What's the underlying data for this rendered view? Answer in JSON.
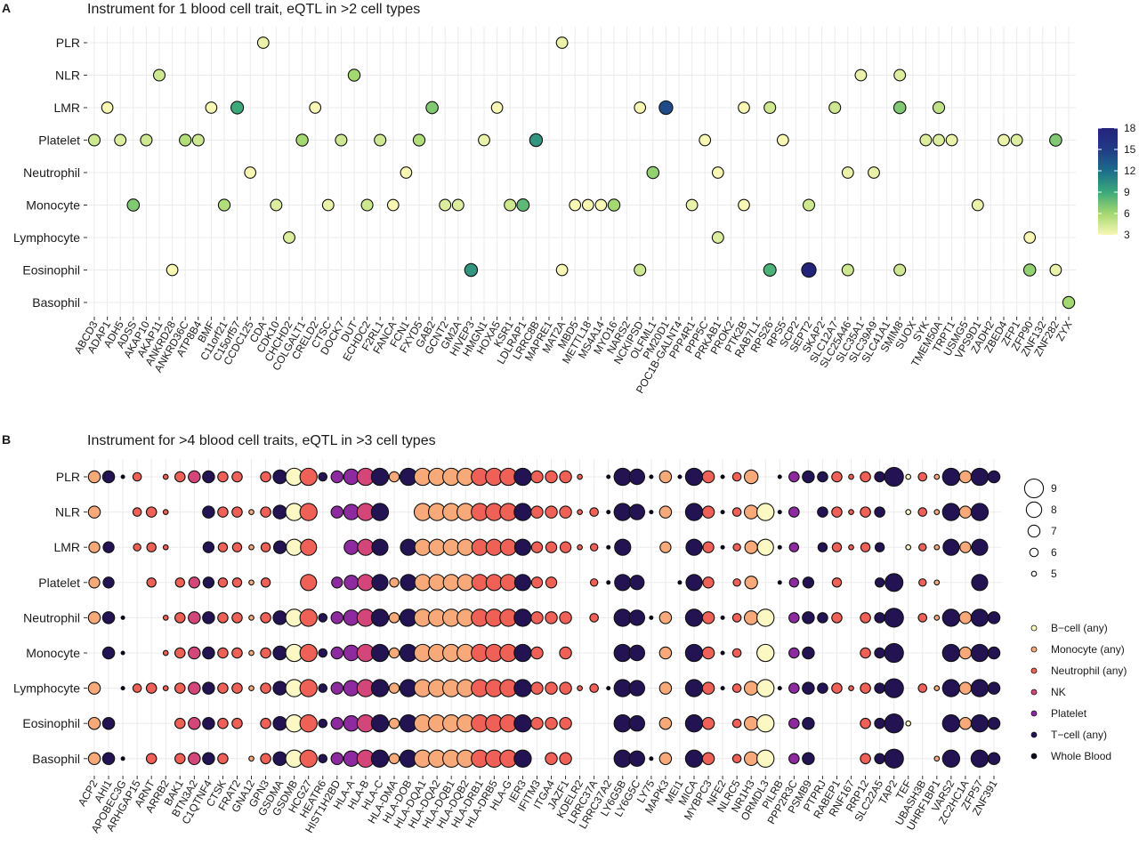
{
  "chart_data": [
    {
      "panel_label": "A",
      "type": "scatter",
      "title": "Instrument for 1 blood cell trait, eQTL in >2 cell types",
      "rows": [
        "PLR",
        "NLR",
        "LMR",
        "Platelet",
        "Neutrophil",
        "Monocyte",
        "Lymphocyte",
        "Eosinophil",
        "Basophil"
      ],
      "columns": [
        "ABCD3",
        "ADAP1",
        "ADH5",
        "ADSS",
        "AKAP10",
        "AKAP11",
        "ANKRD28",
        "ANKRD36C",
        "ATP8B4",
        "BMF",
        "C11orf21",
        "C15orf57",
        "CCDC125",
        "CDA",
        "CDK10",
        "CHCHD2",
        "COLGALT1",
        "CRELD2",
        "CTSC",
        "DOCK7",
        "DUT",
        "ECHDC2",
        "F2RL1",
        "FANCA",
        "FCN1",
        "FXYD5",
        "GAB2",
        "GCNT2",
        "GM2A",
        "HIVEP3",
        "HMGN1",
        "HOXA5",
        "KSR1",
        "LDLRAP1",
        "LRRC8B",
        "MAPRE1",
        "MAT2A",
        "MBD5",
        "METTL18",
        "MS4A14",
        "MYO16",
        "NARS2",
        "NCKIPSD",
        "OLFML1",
        "PM20D1",
        "POC1B-GALNT4",
        "PPP4R1",
        "PPP5C",
        "PRKAB1",
        "PROK2",
        "PTK2B",
        "RAB7L1",
        "RPS26",
        "RPS5",
        "SCP2",
        "SEPT2",
        "SKAP2",
        "SLC12A7",
        "SLC25A46",
        "SLC35A1",
        "SLC39A9",
        "SLC41A1",
        "SMIM8",
        "SUOX",
        "SYK",
        "TMEM50A",
        "TRPT1",
        "USMG5",
        "VPS9D1",
        "ZADH2",
        "ZBED4",
        "ZFP1",
        "ZFP90",
        "ZNF132",
        "ZNF282",
        "ZYX"
      ],
      "points": [
        {
          "row": "PLR",
          "col": "CDA",
          "value": 3.5
        },
        {
          "row": "PLR",
          "col": "MAT2A",
          "value": 3.5
        },
        {
          "row": "NLR",
          "col": "AKAP11",
          "value": 4.5
        },
        {
          "row": "NLR",
          "col": "DUT",
          "value": 6
        },
        {
          "row": "NLR",
          "col": "SLC35A1",
          "value": 3.5
        },
        {
          "row": "NLR",
          "col": "SMIM8",
          "value": 4
        },
        {
          "row": "LMR",
          "col": "ADAP1",
          "value": 3
        },
        {
          "row": "LMR",
          "col": "BMF",
          "value": 3
        },
        {
          "row": "LMR",
          "col": "C15orf57",
          "value": 9
        },
        {
          "row": "LMR",
          "col": "CRELD2",
          "value": 3
        },
        {
          "row": "LMR",
          "col": "GAB2",
          "value": 7
        },
        {
          "row": "LMR",
          "col": "HOXA5",
          "value": 3
        },
        {
          "row": "LMR",
          "col": "NCKIPSD",
          "value": 3
        },
        {
          "row": "LMR",
          "col": "PM20D1",
          "value": 14
        },
        {
          "row": "LMR",
          "col": "PTK2B",
          "value": 3
        },
        {
          "row": "LMR",
          "col": "RPS26",
          "value": 4.5
        },
        {
          "row": "LMR",
          "col": "SLC12A7",
          "value": 4.5
        },
        {
          "row": "LMR",
          "col": "SMIM8",
          "value": 7
        },
        {
          "row": "LMR",
          "col": "TMEM50A",
          "value": 5
        },
        {
          "row": "Platelet",
          "col": "ABCD3",
          "value": 4.5
        },
        {
          "row": "Platelet",
          "col": "ADH5",
          "value": 4
        },
        {
          "row": "Platelet",
          "col": "AKAP10",
          "value": 4.5
        },
        {
          "row": "Platelet",
          "col": "ANKRD36C",
          "value": 5.5
        },
        {
          "row": "Platelet",
          "col": "ATP8B4",
          "value": 4.5
        },
        {
          "row": "Platelet",
          "col": "COLGALT1",
          "value": 6
        },
        {
          "row": "Platelet",
          "col": "DOCK7",
          "value": 4.5
        },
        {
          "row": "Platelet",
          "col": "F2RL1",
          "value": 4.5
        },
        {
          "row": "Platelet",
          "col": "FXYD5",
          "value": 5.5
        },
        {
          "row": "Platelet",
          "col": "HMGN1",
          "value": 3.5
        },
        {
          "row": "Platelet",
          "col": "LRRC8B",
          "value": 10
        },
        {
          "row": "Platelet",
          "col": "PPP5C",
          "value": 3
        },
        {
          "row": "Platelet",
          "col": "RPS5",
          "value": 3
        },
        {
          "row": "Platelet",
          "col": "SYK",
          "value": 4
        },
        {
          "row": "Platelet",
          "col": "TMEM50A",
          "value": 4
        },
        {
          "row": "Platelet",
          "col": "TRPT1",
          "value": 3.5
        },
        {
          "row": "Platelet",
          "col": "ZBED4",
          "value": 3.5
        },
        {
          "row": "Platelet",
          "col": "ZFP1",
          "value": 4
        },
        {
          "row": "Platelet",
          "col": "ZNF282",
          "value": 7
        },
        {
          "row": "Neutrophil",
          "col": "CCDC125",
          "value": 3
        },
        {
          "row": "Neutrophil",
          "col": "FCN1",
          "value": 3
        },
        {
          "row": "Neutrophil",
          "col": "OLFML1",
          "value": 6.5
        },
        {
          "row": "Neutrophil",
          "col": "PRKAB1",
          "value": 3
        },
        {
          "row": "Neutrophil",
          "col": "SLC25A46",
          "value": 3.5
        },
        {
          "row": "Neutrophil",
          "col": "SLC39A9",
          "value": 3.5
        },
        {
          "row": "Monocyte",
          "col": "ADSS",
          "value": 7
        },
        {
          "row": "Monocyte",
          "col": "C11orf21",
          "value": 5.5
        },
        {
          "row": "Monocyte",
          "col": "CDK10",
          "value": 4
        },
        {
          "row": "Monocyte",
          "col": "CTSC",
          "value": 3.5
        },
        {
          "row": "Monocyte",
          "col": "ECHDC2",
          "value": 4.5
        },
        {
          "row": "Monocyte",
          "col": "FANCA",
          "value": 3
        },
        {
          "row": "Monocyte",
          "col": "GCNT2",
          "value": 4
        },
        {
          "row": "Monocyte",
          "col": "GM2A",
          "value": 4
        },
        {
          "row": "Monocyte",
          "col": "KSR1",
          "value": 4.5
        },
        {
          "row": "Monocyte",
          "col": "LDLRAP1",
          "value": 8
        },
        {
          "row": "Monocyte",
          "col": "MBD5",
          "value": 3
        },
        {
          "row": "Monocyte",
          "col": "METTL18",
          "value": 3
        },
        {
          "row": "Monocyte",
          "col": "MS4A14",
          "value": 3
        },
        {
          "row": "Monocyte",
          "col": "MYO16",
          "value": 6
        },
        {
          "row": "Monocyte",
          "col": "PPP4R1",
          "value": 3.5
        },
        {
          "row": "Monocyte",
          "col": "PTK2B",
          "value": 3
        },
        {
          "row": "Monocyte",
          "col": "SEPT2",
          "value": 4.5
        },
        {
          "row": "Monocyte",
          "col": "VPS9D1",
          "value": 3.5
        },
        {
          "row": "Lymphocyte",
          "col": "CHCHD2",
          "value": 4
        },
        {
          "row": "Lymphocyte",
          "col": "PRKAB1",
          "value": 4
        },
        {
          "row": "Lymphocyte",
          "col": "ZFP90",
          "value": 3
        },
        {
          "row": "Eosinophil",
          "col": "ANKRD28",
          "value": 3
        },
        {
          "row": "Eosinophil",
          "col": "HIVEP3",
          "value": 10
        },
        {
          "row": "Eosinophil",
          "col": "MAT2A",
          "value": 3
        },
        {
          "row": "Eosinophil",
          "col": "NCKIPSD",
          "value": 4.5
        },
        {
          "row": "Eosinophil",
          "col": "RPS26",
          "value": 8.5
        },
        {
          "row": "Eosinophil",
          "col": "SEPT2",
          "value": 18
        },
        {
          "row": "Eosinophil",
          "col": "SLC25A46",
          "value": 4.5
        },
        {
          "row": "Eosinophil",
          "col": "SMIM8",
          "value": 4.5
        },
        {
          "row": "Eosinophil",
          "col": "ZFP90",
          "value": 6.5
        },
        {
          "row": "Eosinophil",
          "col": "ZNF282",
          "value": 3.5
        },
        {
          "row": "Basophil",
          "col": "ZYX",
          "value": 6
        }
      ],
      "colorbar": {
        "ticks": [
          3,
          6,
          9,
          12,
          15,
          18
        ],
        "range": [
          3,
          18
        ]
      }
    },
    {
      "panel_label": "B",
      "type": "scatter",
      "title": "Instrument for >4 blood cell traits, eQTL in >3 cell types",
      "rows": [
        "PLR",
        "NLR",
        "LMR",
        "Platelet",
        "Neutrophil",
        "Monocyte",
        "Lymphocyte",
        "Eosinophil",
        "Basophil"
      ],
      "columns": [
        "ACP2",
        "AHI1",
        "APOBEC3G",
        "ARHGAP15",
        "ARNT",
        "ARRB2",
        "BAK1",
        "BTN3A2",
        "C1QTNF4",
        "CTSK",
        "FRAT2",
        "GNA12",
        "GPN3",
        "GSDMA",
        "GSDMB",
        "HCG27",
        "HEATR6",
        "HIST1H2BD",
        "HLA-A",
        "HLA-B",
        "HLA-C",
        "HLA-DMA",
        "HLA-DOB",
        "HLA-DQA1",
        "HLA-DQA2",
        "HLA-DQB1",
        "HLA-DQB2",
        "HLA-DRB1",
        "HLA-DRB5",
        "HLA-G",
        "IER3",
        "IFITM3",
        "ITGA4",
        "JAZF1",
        "KDELR2",
        "LRRC37A",
        "LRRC37A2",
        "LY6G5B",
        "LY6G5C",
        "LY75",
        "MAPK3",
        "MEI1",
        "MICA",
        "MYBPC3",
        "NFE2",
        "NLRC5",
        "NR1H3",
        "ORMDL3",
        "PILRB",
        "PPP2R3C",
        "PSMB9",
        "PTPRJ",
        "RABEP1",
        "RNF167",
        "RRP12",
        "SLC22A5",
        "TAP2",
        "TEF",
        "UBASH3B",
        "UHRF1BP1",
        "VARS2",
        "ZC2HC1A",
        "ZFP57",
        "ZNF391"
      ],
      "column_tissue": {
        "ACP2": "Monocyte (any)",
        "AHI1": "T-cell (any)",
        "APOBEC3G": "Whole Blood",
        "ARHGAP15": "Neutrophil (any)",
        "ARNT": "Neutrophil (any)",
        "ARRB2": "Neutrophil (any)",
        "BAK1": "Neutrophil (any)",
        "BTN3A2": "NK",
        "C1QTNF4": "T-cell (any)",
        "CTSK": "Neutrophil (any)",
        "FRAT2": "Neutrophil (any)",
        "GNA12": "Monocyte (any)",
        "GPN3": "Neutrophil (any)",
        "GSDMA": "T-cell (any)",
        "GSDMB": "B-cell (any)",
        "HCG27": "Neutrophil (any)",
        "HEATR6": "T-cell (any)",
        "HIST1H2BD": "Platelet",
        "HLA-A": "Platelet",
        "HLA-B": "NK",
        "HLA-C": "T-cell (any)",
        "HLA-DMA": "Monocyte (any)",
        "HLA-DOB": "T-cell (any)",
        "HLA-DQA1": "Monocyte (any)",
        "HLA-DQA2": "Monocyte (any)",
        "HLA-DQB1": "Monocyte (any)",
        "HLA-DQB2": "Monocyte (any)",
        "HLA-DRB1": "Neutrophil (any)",
        "HLA-DRB5": "Neutrophil (any)",
        "HLA-G": "Neutrophil (any)",
        "IER3": "T-cell (any)",
        "IFITM3": "Neutrophil (any)",
        "ITGA4": "Neutrophil (any)",
        "JAZF1": "Neutrophil (any)",
        "KDELR2": "Neutrophil (any)",
        "LRRC37A": "Neutrophil (any)",
        "LRRC37A2": "Whole Blood",
        "LY6G5B": "T-cell (any)",
        "LY6G5C": "T-cell (any)",
        "LY75": "Whole Blood",
        "MAPK3": "Monocyte (any)",
        "MEI1": "Whole Blood",
        "MICA": "T-cell (any)",
        "MYBPC3": "Neutrophil (any)",
        "NFE2": "Whole Blood",
        "NLRC5": "Neutrophil (any)",
        "NR1H3": "Monocyte (any)",
        "ORMDL3": "B-cell (any)",
        "PILRB": "Whole Blood",
        "PPP2R3C": "Platelet",
        "PSMB9": "T-cell (any)",
        "PTPRJ": "T-cell (any)",
        "RABEP1": "Neutrophil (any)",
        "RNF167": "Neutrophil (any)",
        "RRP12": "Neutrophil (any)",
        "SLC22A5": "T-cell (any)",
        "TAP2": "T-cell (any)",
        "TEF": "B-cell (any)",
        "UBASH3B": "Neutrophil (any)",
        "UHRF1BP1": "Monocyte (any)",
        "VARS2": "T-cell (any)",
        "ZC2HC1A": "Monocyte (any)",
        "ZFP57": "T-cell (any)",
        "ZNF391": "T-cell (any)"
      },
      "column_size": {
        "ACP2": 7,
        "AHI1": 7,
        "APOBEC3G": 5,
        "ARHGAP15": 6,
        "ARNT": 6.5,
        "ARRB2": 5,
        "BAK1": 6.5,
        "BTN3A2": 7,
        "C1QTNF4": 7,
        "CTSK": 6.5,
        "FRAT2": 6.5,
        "GNA12": 5,
        "GPN3": 6.5,
        "GSDMA": 7.5,
        "GSDMB": 8.5,
        "HCG27": 8.5,
        "HEATR6": 6,
        "HIST1H2BD": 7,
        "HLA-A": 8,
        "HLA-B": 8.5,
        "HLA-C": 8.5,
        "HLA-DMA": 6.5,
        "HLA-DOB": 8.5,
        "HLA-DQA1": 8.5,
        "HLA-DQA2": 8.5,
        "HLA-DQB1": 8.5,
        "HLA-DQB2": 8.5,
        "HLA-DRB1": 8.5,
        "HLA-DRB5": 8.5,
        "HLA-G": 8.5,
        "IER3": 8.5,
        "IFITM3": 7,
        "ITGA4": 7,
        "JAZF1": 7,
        "KDELR2": 5,
        "LRRC37A": 6,
        "LRRC37A2": 5,
        "LY6G5B": 8.5,
        "LY6G5C": 8,
        "LY75": 5,
        "MAPK3": 7,
        "MEI1": 5,
        "MICA": 8.5,
        "MYBPC3": 7,
        "NFE2": 5,
        "NLRC5": 6,
        "NR1H3": 7.5,
        "ORMDL3": 8.5,
        "PILRB": 5,
        "PPP2R3C": 6.5,
        "PSMB9": 7,
        "PTPRJ": 6.5,
        "RABEP1": 6.5,
        "RNF167": 5,
        "RRP12": 6.5,
        "SLC22A5": 6.5,
        "TAP2": 9,
        "TEF": 5,
        "UBASH3B": 6,
        "UHRF1BP1": 5,
        "VARS2": 8.5,
        "ZC2HC1A": 7,
        "ZFP57": 8.5,
        "ZNF391": 7
      },
      "missing": {
        "PLR": [
          "ARNT",
          "GNA12",
          "LRRC37A",
          "ORMDL3"
        ],
        "NLR": [
          "AHI1",
          "APOBEC3G",
          "BAK1",
          "BTN3A2",
          "HEATR6",
          "HLA-DMA",
          "HLA-DOB",
          "MEI1",
          "PSMB9",
          "TAP2",
          "ZNF391"
        ],
        "LMR": [
          "APOBEC3G",
          "BAK1",
          "BTN3A2",
          "HEATR6",
          "HIST1H2BD",
          "HLA-DMA",
          "LY6G5C",
          "LY75",
          "MEI1",
          "PSMB9",
          "TAP2",
          "ZNF391"
        ],
        "Platelet": [
          "APOBEC3G",
          "ARHGAP15",
          "ARRB2",
          "GSDMA",
          "GSDMB",
          "HEATR6",
          "JAZF1",
          "KDELR2",
          "LY75",
          "MAPK3",
          "NFE2",
          "ORMDL3",
          "PTPRJ",
          "RNF167",
          "RRP12",
          "TEF",
          "VARS2",
          "ZC2HC1A",
          "ZNF391"
        ],
        "Neutrophil": [
          "ARHGAP15",
          "ARNT",
          "KDELR2",
          "LRRC37A2",
          "MEI1",
          "PILRB",
          "TEF",
          "RNF167"
        ],
        "Monocyte": [
          "ACP2",
          "ARHGAP15",
          "ARNT",
          "ITGA4",
          "KDELR2",
          "LRRC37A",
          "LRRC37A2",
          "LY75",
          "MEI1",
          "NR1H3",
          "PILRB",
          "PTPRJ",
          "RABEP1",
          "RNF167",
          "TEF",
          "UBASH3B",
          "UHRF1BP1"
        ],
        "Lymphocyte": [
          "AHI1",
          "LY75",
          "MEI1",
          "TEF"
        ],
        "Eosinophil": [
          "APOBEC3G",
          "ARHGAP15",
          "ARNT",
          "ARRB2",
          "GNA12",
          "KDELR2",
          "LRRC37A",
          "LRRC37A2",
          "LY75",
          "MEI1",
          "NFE2",
          "PILRB",
          "PTPRJ",
          "RABEP1",
          "RNF167",
          "UBASH3B",
          "UHRF1BP1"
        ],
        "Basophil": [
          "ARHGAP15",
          "ARRB2",
          "FRAT2",
          "IFITM3",
          "KDELR2",
          "LRRC37A",
          "LRRC37A2",
          "MEI1",
          "NFE2",
          "PILRB",
          "PTPRJ",
          "RABEP1",
          "RNF167",
          "TEF",
          "UBASH3B",
          "ZC2HC1A"
        ]
      },
      "size_legend": [
        9,
        8,
        7,
        6,
        5
      ],
      "color_legend": [
        "B−cell (any)",
        "Monocyte (any)",
        "Neutrophil (any)",
        "NK",
        "Platelet",
        "T−cell (any)",
        "Whole Blood"
      ]
    }
  ],
  "colors": {
    "B-cell (any)": "#fbf8c4",
    "Monocyte (any)": "#f8a97a",
    "Neutrophil (any)": "#ef6056",
    "NK": "#d44679",
    "Platelet": "#8e2aa0",
    "T-cell (any)": "#231352",
    "Whole Blood": "#08061a"
  },
  "colorbar_colors": [
    "#f8f7b4",
    "#a4d870",
    "#3ba97a",
    "#1c6d8c",
    "#213b86",
    "#24237a"
  ]
}
